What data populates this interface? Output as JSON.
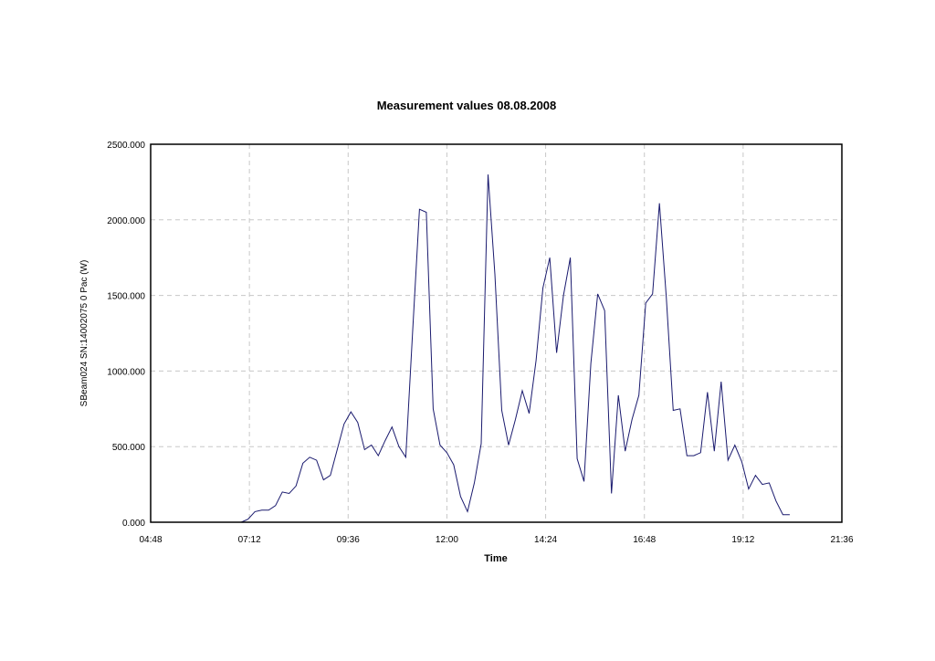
{
  "chart_data": {
    "type": "line",
    "title": "Measurement values 08.08.2008",
    "xlabel": "Time",
    "ylabel": "SBeam024 SN:14002075 0 Pac (W)",
    "xlim": [
      "04:48",
      "21:36"
    ],
    "ylim": [
      0,
      2500
    ],
    "x_ticks": [
      "04:48",
      "07:12",
      "09:36",
      "12:00",
      "14:24",
      "16:48",
      "19:12",
      "21:36"
    ],
    "y_ticks": [
      "0.000",
      "500.000",
      "1000.000",
      "1500.000",
      "2000.000",
      "2500.000"
    ],
    "grid": true,
    "legend": "none",
    "line_color": "#1a1a6e",
    "series": [
      {
        "x": [
          "07:00",
          "07:10",
          "07:20",
          "07:30",
          "07:40",
          "07:50",
          "08:00",
          "08:10",
          "08:20",
          "08:30",
          "08:40",
          "08:50",
          "09:00",
          "09:10",
          "09:20",
          "09:30",
          "09:40",
          "09:50",
          "10:00",
          "10:10",
          "10:20",
          "10:30",
          "10:40",
          "10:50",
          "11:00",
          "11:10",
          "11:20",
          "11:30",
          "11:40",
          "11:50",
          "12:00",
          "12:10",
          "12:20",
          "12:30",
          "12:40",
          "12:50",
          "13:00",
          "13:10",
          "13:20",
          "13:30",
          "13:40",
          "13:50",
          "14:00",
          "14:10",
          "14:20",
          "14:30",
          "14:40",
          "14:50",
          "15:00",
          "15:10",
          "15:20",
          "15:30",
          "15:40",
          "15:50",
          "16:00",
          "16:10",
          "16:20",
          "16:30",
          "16:40",
          "16:50",
          "17:00",
          "17:10",
          "17:20",
          "17:30",
          "17:40",
          "17:50",
          "18:00",
          "18:10",
          "18:20",
          "18:30",
          "18:40",
          "18:50",
          "19:00",
          "19:10",
          "19:20",
          "19:30",
          "19:40",
          "19:50",
          "20:00",
          "20:10",
          "20:20",
          "20:30"
        ],
        "y": [
          0,
          20,
          70,
          80,
          80,
          110,
          200,
          190,
          240,
          390,
          430,
          410,
          280,
          310,
          480,
          650,
          730,
          660,
          480,
          510,
          440,
          540,
          630,
          500,
          430,
          1260,
          2070,
          2050,
          750,
          510,
          460,
          380,
          170,
          70,
          260,
          520,
          2300,
          1640,
          740,
          510,
          680,
          870,
          720,
          1070,
          1550,
          1750,
          1120,
          1500,
          1750,
          420,
          270,
          1050,
          1510,
          1400,
          190,
          840,
          470,
          680,
          840,
          1450,
          1510,
          2110,
          1490,
          740,
          750,
          440,
          440,
          460,
          860,
          470,
          930,
          410,
          510,
          400,
          220,
          310,
          250,
          260,
          140,
          50,
          50,
          null
        ]
      }
    ]
  }
}
